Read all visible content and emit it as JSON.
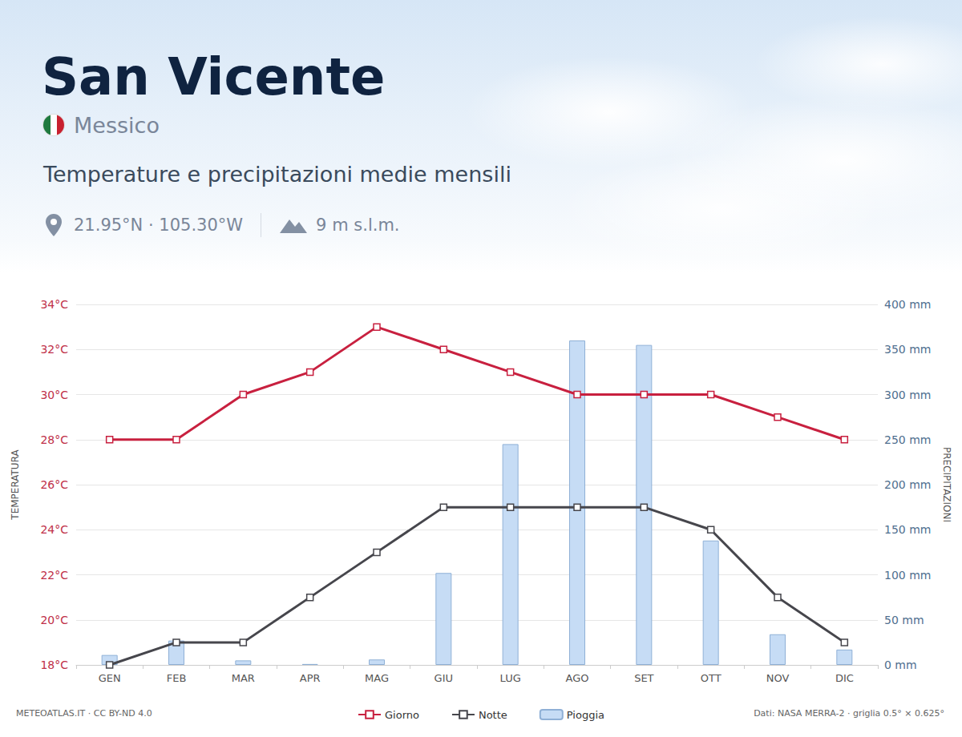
{
  "header": {
    "country": "Messico",
    "coordinates": "21.95°N · 105.30°W",
    "elevation": "9 m s.l.m."
  },
  "footer": {
    "credit": "METEOATLAS.IT · CC BY-ND 4.0",
    "source": "Dati: NASA MERRA-2 · griglia 0.5° × 0.625°"
  },
  "chart_data": {
    "type": "line",
    "title": "San Vicente",
    "subtitle": "Temperature e precipitazioni medie mensili",
    "ylabel": "TEMPERATURA",
    "y2label": "PRECIPITAZIONI",
    "categories": [
      "GEN",
      "FEB",
      "MAR",
      "APR",
      "MAG",
      "GIU",
      "LUG",
      "AGO",
      "SET",
      "OTT",
      "NOV",
      "DIC"
    ],
    "series": [
      {
        "name": "Giorno",
        "type": "line",
        "color": "#c8203f",
        "marker": "square",
        "line_style": "solid",
        "values": [
          28,
          28,
          30,
          31,
          33,
          32,
          31,
          30,
          30,
          30,
          29,
          28
        ]
      },
      {
        "name": "Notte",
        "type": "line",
        "color": "#46464c",
        "marker": "square",
        "line_style": "solid",
        "values": [
          18,
          19,
          19,
          21,
          23,
          25,
          25,
          25,
          25,
          24,
          21,
          19
        ]
      },
      {
        "name": "Pioggia",
        "type": "bar",
        "color": "#c6dcf5",
        "axis": "y2",
        "values": [
          11,
          27,
          5,
          1,
          6,
          102,
          245,
          360,
          355,
          138,
          34,
          17
        ]
      }
    ],
    "ylim": [
      18,
      34
    ],
    "yticks": [
      {
        "value": 18,
        "label": "18°C"
      },
      {
        "value": 20,
        "label": "20°C"
      },
      {
        "value": 22,
        "label": "22°C"
      },
      {
        "value": 24,
        "label": "24°C"
      },
      {
        "value": 26,
        "label": "26°C"
      },
      {
        "value": 28,
        "label": "28°C"
      },
      {
        "value": 30,
        "label": "30°C"
      },
      {
        "value": 32,
        "label": "32°C"
      },
      {
        "value": 34,
        "label": "34°C"
      }
    ],
    "y2lim": [
      0,
      400
    ],
    "y2ticks": [
      {
        "value": 0,
        "label": "0 mm"
      },
      {
        "value": 50,
        "label": "50 mm"
      },
      {
        "value": 100,
        "label": "100 mm"
      },
      {
        "value": 150,
        "label": "150 mm"
      },
      {
        "value": 200,
        "label": "200 mm"
      },
      {
        "value": 250,
        "label": "250 mm"
      },
      {
        "value": 300,
        "label": "300 mm"
      },
      {
        "value": 350,
        "label": "350 mm"
      },
      {
        "value": 400,
        "label": "400 mm"
      }
    ],
    "grid": true,
    "legend": "bottom"
  }
}
